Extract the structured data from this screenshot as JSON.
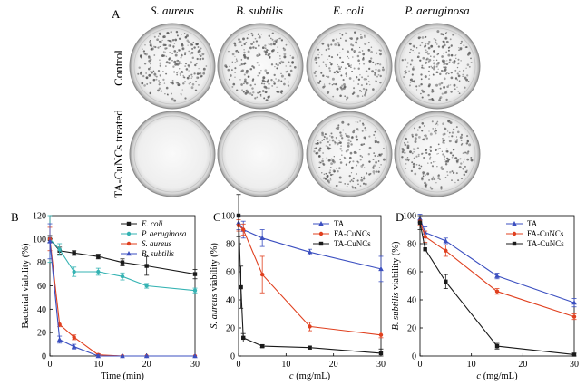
{
  "panels": {
    "A": {
      "label": "A",
      "columns": [
        "S. aureus",
        "B. subtilis",
        "E. coli",
        "P. aeruginosa"
      ],
      "rows": [
        "Control",
        "TA-CuNCs treated"
      ],
      "colony_density": [
        [
          0.95,
          0.85,
          0.75,
          0.9
        ],
        [
          0.0,
          0.0,
          0.85,
          0.8
        ]
      ]
    }
  },
  "chart_data": [
    {
      "panel": "B",
      "type": "line",
      "xlabel": "Time (min)",
      "ylabel": "Bacterial viability (%)",
      "xlim": [
        0,
        30
      ],
      "ylim": [
        0,
        120
      ],
      "xticks": [
        "0",
        "10",
        "20",
        "30"
      ],
      "yticks": [
        "0",
        "20",
        "40",
        "60",
        "80",
        "100",
        "120"
      ],
      "legend_position": "top-right",
      "series": [
        {
          "name": "E. coli",
          "color": "#1a1a1a",
          "marker": "square",
          "italic": true,
          "x": [
            0,
            2,
            5,
            10,
            15,
            20,
            30
          ],
          "y": [
            100,
            90,
            88,
            85,
            80,
            77,
            70
          ],
          "err": [
            3,
            3,
            2,
            2,
            3,
            8,
            4
          ]
        },
        {
          "name": "P. aeruginosa",
          "color": "#35b3b3",
          "marker": "circle",
          "italic": true,
          "x": [
            0,
            2,
            5,
            10,
            15,
            20,
            30
          ],
          "y": [
            100,
            91,
            72,
            72,
            68,
            60,
            56
          ],
          "err": [
            20,
            5,
            4,
            3,
            3,
            2,
            2
          ]
        },
        {
          "name": "S. aureus",
          "color": "#e0401f",
          "marker": "circle",
          "italic": true,
          "x": [
            0,
            2,
            5,
            10,
            15,
            20,
            30
          ],
          "y": [
            100,
            27,
            16,
            1,
            0,
            0,
            0
          ],
          "err": [
            10,
            2,
            2,
            1,
            0,
            0,
            0
          ]
        },
        {
          "name": "B. subtilis",
          "color": "#3b4fc0",
          "marker": "triangle",
          "italic": true,
          "x": [
            0,
            2,
            5,
            10,
            15,
            20,
            30
          ],
          "y": [
            98,
            14,
            8,
            0,
            0,
            0,
            0
          ],
          "err": [
            15,
            3,
            2,
            1,
            0,
            0,
            0
          ]
        }
      ]
    },
    {
      "panel": "C",
      "type": "line",
      "xlabel": "c (mg/mL)",
      "ylabel": "S. aureus viability (%)",
      "xlim": [
        0,
        30
      ],
      "ylim": [
        0,
        100
      ],
      "xticks": [
        "0",
        "10",
        "20",
        "30"
      ],
      "yticks": [
        "0",
        "20",
        "40",
        "60",
        "80",
        "100"
      ],
      "legend_position": "top-right",
      "series": [
        {
          "name": "TA",
          "color": "#3b4fc0",
          "marker": "triangle",
          "x": [
            0,
            1,
            5,
            15,
            30
          ],
          "y": [
            95,
            90,
            84,
            74,
            62
          ],
          "err": [
            5,
            6,
            6,
            2,
            9
          ]
        },
        {
          "name": "FA-CuNCs",
          "color": "#e0401f",
          "marker": "circle",
          "x": [
            0,
            1,
            5,
            15,
            30
          ],
          "y": [
            93,
            90,
            58,
            21,
            15
          ],
          "err": [
            4,
            4,
            13,
            3,
            2
          ]
        },
        {
          "name": "TA-CuNCs",
          "color": "#1a1a1a",
          "marker": "square",
          "x": [
            0,
            0.5,
            1,
            5,
            15,
            30
          ],
          "y": [
            100,
            49,
            13,
            7,
            6,
            2
          ],
          "err": [
            15,
            15,
            3,
            1,
            1,
            3
          ]
        }
      ]
    },
    {
      "panel": "D",
      "type": "line",
      "xlabel": "c (mg/mL)",
      "ylabel": "B. subtilis viability (%)",
      "xlim": [
        0,
        30
      ],
      "ylim": [
        0,
        100
      ],
      "xticks": [
        "0",
        "10",
        "20",
        "30"
      ],
      "yticks": [
        "0",
        "20",
        "40",
        "60",
        "80",
        "100"
      ],
      "legend_position": "top-right",
      "series": [
        {
          "name": "TA",
          "color": "#3b4fc0",
          "marker": "triangle",
          "x": [
            0,
            1,
            5,
            15,
            30
          ],
          "y": [
            98,
            88,
            82,
            57,
            38
          ],
          "err": [
            3,
            4,
            2,
            2,
            3
          ]
        },
        {
          "name": "FA-CuNCs",
          "color": "#e0401f",
          "marker": "circle",
          "x": [
            0,
            1,
            5,
            15,
            30
          ],
          "y": [
            96,
            85,
            75,
            46,
            28
          ],
          "err": [
            3,
            4,
            4,
            2,
            2
          ]
        },
        {
          "name": "TA-CuNCs",
          "color": "#1a1a1a",
          "marker": "square",
          "x": [
            0,
            1,
            5,
            15,
            30
          ],
          "y": [
            95,
            76,
            53,
            7,
            1
          ],
          "err": [
            5,
            4,
            5,
            2,
            1
          ]
        }
      ]
    }
  ]
}
